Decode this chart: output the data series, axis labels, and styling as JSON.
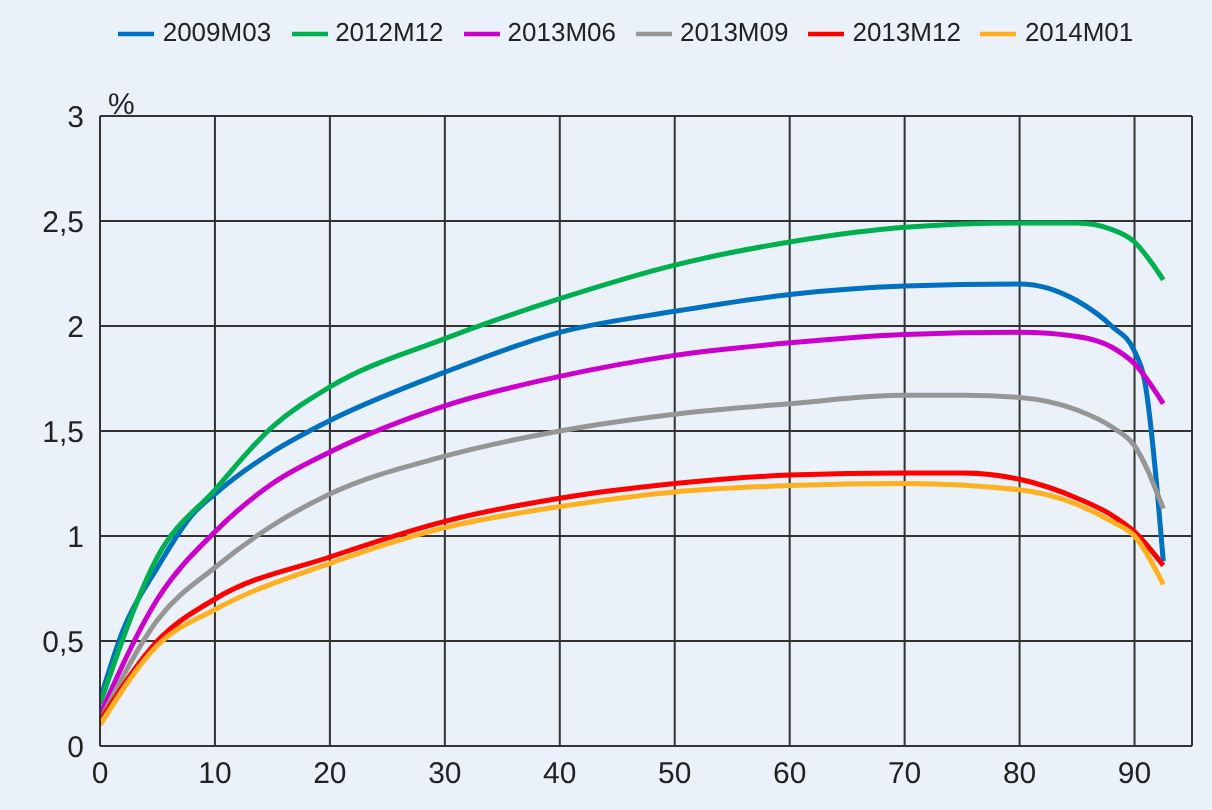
{
  "chart_data": {
    "type": "line",
    "ylabel": "%",
    "xlim": [
      0,
      95
    ],
    "xticks": [
      0,
      10,
      20,
      30,
      40,
      50,
      60,
      70,
      80,
      90
    ],
    "ylim": [
      0,
      3
    ],
    "yticks": [
      0,
      {
        "value": 0.5,
        "label": "0,5"
      },
      1,
      {
        "value": 1.5,
        "label": "1,5"
      },
      2,
      {
        "value": 2.5,
        "label": "2,5"
      },
      3
    ],
    "grid": true,
    "legend": "top",
    "marker": "none",
    "line_style": "solid",
    "series": [
      {
        "name": "2009M03",
        "color": "#0070c0",
        "x": [
          0,
          2,
          5,
          8,
          10,
          15,
          20,
          30,
          40,
          50,
          60,
          70,
          80,
          85,
          88,
          90,
          91,
          92,
          92.5
        ],
        "values": [
          0.22,
          0.55,
          0.85,
          1.1,
          1.2,
          1.4,
          1.55,
          1.78,
          1.97,
          2.07,
          2.15,
          2.19,
          2.2,
          2.12,
          2.0,
          1.88,
          1.7,
          1.2,
          0.88
        ]
      },
      {
        "name": "2012M12",
        "color": "#00b050",
        "x": [
          0,
          5,
          10,
          15,
          20,
          30,
          40,
          50,
          60,
          70,
          80,
          85,
          88,
          90,
          91.5,
          92.5
        ],
        "values": [
          0.2,
          0.9,
          1.22,
          1.52,
          1.71,
          1.94,
          2.13,
          2.29,
          2.4,
          2.47,
          2.49,
          2.49,
          2.46,
          2.4,
          2.3,
          2.22
        ]
      },
      {
        "name": "2013M06",
        "color": "#cc00cc",
        "x": [
          0,
          5,
          10,
          15,
          20,
          30,
          40,
          50,
          60,
          70,
          80,
          85,
          88,
          90,
          92.5
        ],
        "values": [
          0.15,
          0.7,
          1.02,
          1.25,
          1.4,
          1.62,
          1.76,
          1.86,
          1.92,
          1.96,
          1.97,
          1.95,
          1.9,
          1.82,
          1.63
        ]
      },
      {
        "name": "2013M09",
        "color": "#969696",
        "x": [
          0,
          5,
          10,
          15,
          20,
          30,
          40,
          50,
          60,
          70,
          75,
          80,
          85,
          88,
          90,
          92.5
        ],
        "values": [
          0.12,
          0.6,
          0.85,
          1.05,
          1.2,
          1.38,
          1.5,
          1.58,
          1.63,
          1.67,
          1.67,
          1.66,
          1.6,
          1.52,
          1.43,
          1.13
        ]
      },
      {
        "name": "2013M12",
        "color": "#ff0000",
        "x": [
          0,
          5,
          10,
          20,
          30,
          40,
          50,
          60,
          70,
          75,
          80,
          85,
          88,
          90,
          92.5
        ],
        "values": [
          0.12,
          0.5,
          0.7,
          0.9,
          1.07,
          1.18,
          1.25,
          1.29,
          1.3,
          1.3,
          1.27,
          1.18,
          1.1,
          1.02,
          0.86
        ]
      },
      {
        "name": "2014M01",
        "color": "#ffb020",
        "x": [
          0,
          5,
          10,
          20,
          30,
          40,
          50,
          60,
          70,
          80,
          85,
          88,
          90,
          92.5
        ],
        "values": [
          0.1,
          0.48,
          0.65,
          0.87,
          1.04,
          1.14,
          1.21,
          1.24,
          1.25,
          1.22,
          1.15,
          1.07,
          1.0,
          0.77
        ]
      }
    ]
  }
}
